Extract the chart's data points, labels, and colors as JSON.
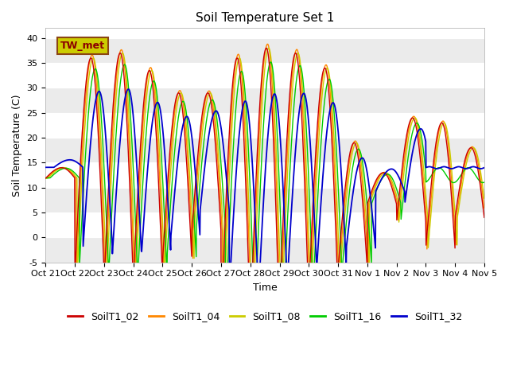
{
  "title": "Soil Temperature Set 1",
  "xlabel": "Time",
  "ylabel": "Soil Temperature (C)",
  "ylim": [
    -5,
    42
  ],
  "xtick_labels": [
    "Oct 21",
    "Oct 22",
    "Oct 23",
    "Oct 24",
    "Oct 25",
    "Oct 26",
    "Oct 27",
    "Oct 28",
    "Oct 29",
    "Oct 30",
    "Oct 31",
    "Nov 1",
    "Nov 2",
    "Nov 3",
    "Nov 4",
    "Nov 5"
  ],
  "ytick_values": [
    -5,
    0,
    5,
    10,
    15,
    20,
    25,
    30,
    35,
    40
  ],
  "series_names": [
    "SoilT1_02",
    "SoilT1_04",
    "SoilT1_08",
    "SoilT1_16",
    "SoilT1_32"
  ],
  "series_colors": [
    "#cc0000",
    "#ff8800",
    "#cccc00",
    "#00cc00",
    "#0000cc"
  ],
  "tw_met_label": "TW_met",
  "tw_met_text_color": "#8b0000",
  "tw_met_box_facecolor": "#cccc00",
  "tw_met_box_edgecolor": "#8b4513",
  "background_color": "#ffffff",
  "band_color_light": "#ebebeb",
  "band_color_white": "#ffffff",
  "title_fontsize": 11,
  "axis_fontsize": 9,
  "tick_fontsize": 8,
  "legend_fontsize": 9,
  "total_days": 15,
  "points_per_day": 96
}
